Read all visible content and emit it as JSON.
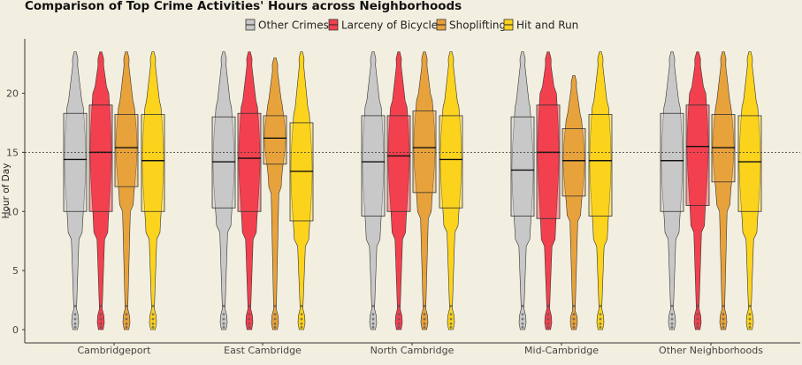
{
  "chart_data": {
    "type": "violin-box",
    "title": "Comparison of Top Crime Activities' Hours across Neighborhoods",
    "xlabel": "",
    "ylabel": "Hour of Day",
    "ylim": [
      0,
      24
    ],
    "y_ticks": [
      0,
      5,
      10,
      15,
      20
    ],
    "reference_line_y": 15,
    "legend_position": "top",
    "categories": [
      "Cambridgeport",
      "East Cambridge",
      "North Cambridge",
      "Mid-Cambridge",
      "Other Neighborhoods"
    ],
    "series": [
      {
        "name": "Other Crimes",
        "color": "#c8c8c8",
        "q1": [
          10.0,
          10.3,
          9.6,
          9.6,
          10.0
        ],
        "median": [
          14.4,
          14.2,
          14.2,
          13.5,
          14.3
        ],
        "q3": [
          18.3,
          18.0,
          18.1,
          18.0,
          18.3
        ],
        "max": [
          23.5,
          23.5,
          23.5,
          23.5,
          23.5
        ]
      },
      {
        "name": "Larceny of Bicycle",
        "color": "#f2404f",
        "q1": [
          10.0,
          10.0,
          10.0,
          9.4,
          10.5
        ],
        "median": [
          15.0,
          14.5,
          14.7,
          15.0,
          15.5
        ],
        "q3": [
          19.0,
          18.3,
          18.1,
          19.0,
          19.0
        ],
        "max": [
          23.5,
          23.5,
          23.5,
          23.5,
          23.5
        ]
      },
      {
        "name": "Shoplifting",
        "color": "#e8a23c",
        "q1": [
          12.1,
          14.0,
          11.6,
          11.3,
          12.5
        ],
        "median": [
          15.4,
          16.2,
          15.4,
          14.3,
          15.4
        ],
        "q3": [
          18.2,
          18.1,
          18.5,
          17.0,
          18.2
        ],
        "max": [
          23.5,
          23.0,
          23.5,
          21.5,
          23.5
        ]
      },
      {
        "name": "Hit and Run",
        "color": "#fcd31d",
        "q1": [
          10.0,
          9.2,
          10.3,
          9.6,
          10.0
        ],
        "median": [
          14.3,
          13.4,
          14.4,
          14.3,
          14.2
        ],
        "q3": [
          18.2,
          17.5,
          18.1,
          18.2,
          18.1
        ],
        "max": [
          23.5,
          23.5,
          23.5,
          23.5,
          23.5
        ]
      }
    ]
  }
}
